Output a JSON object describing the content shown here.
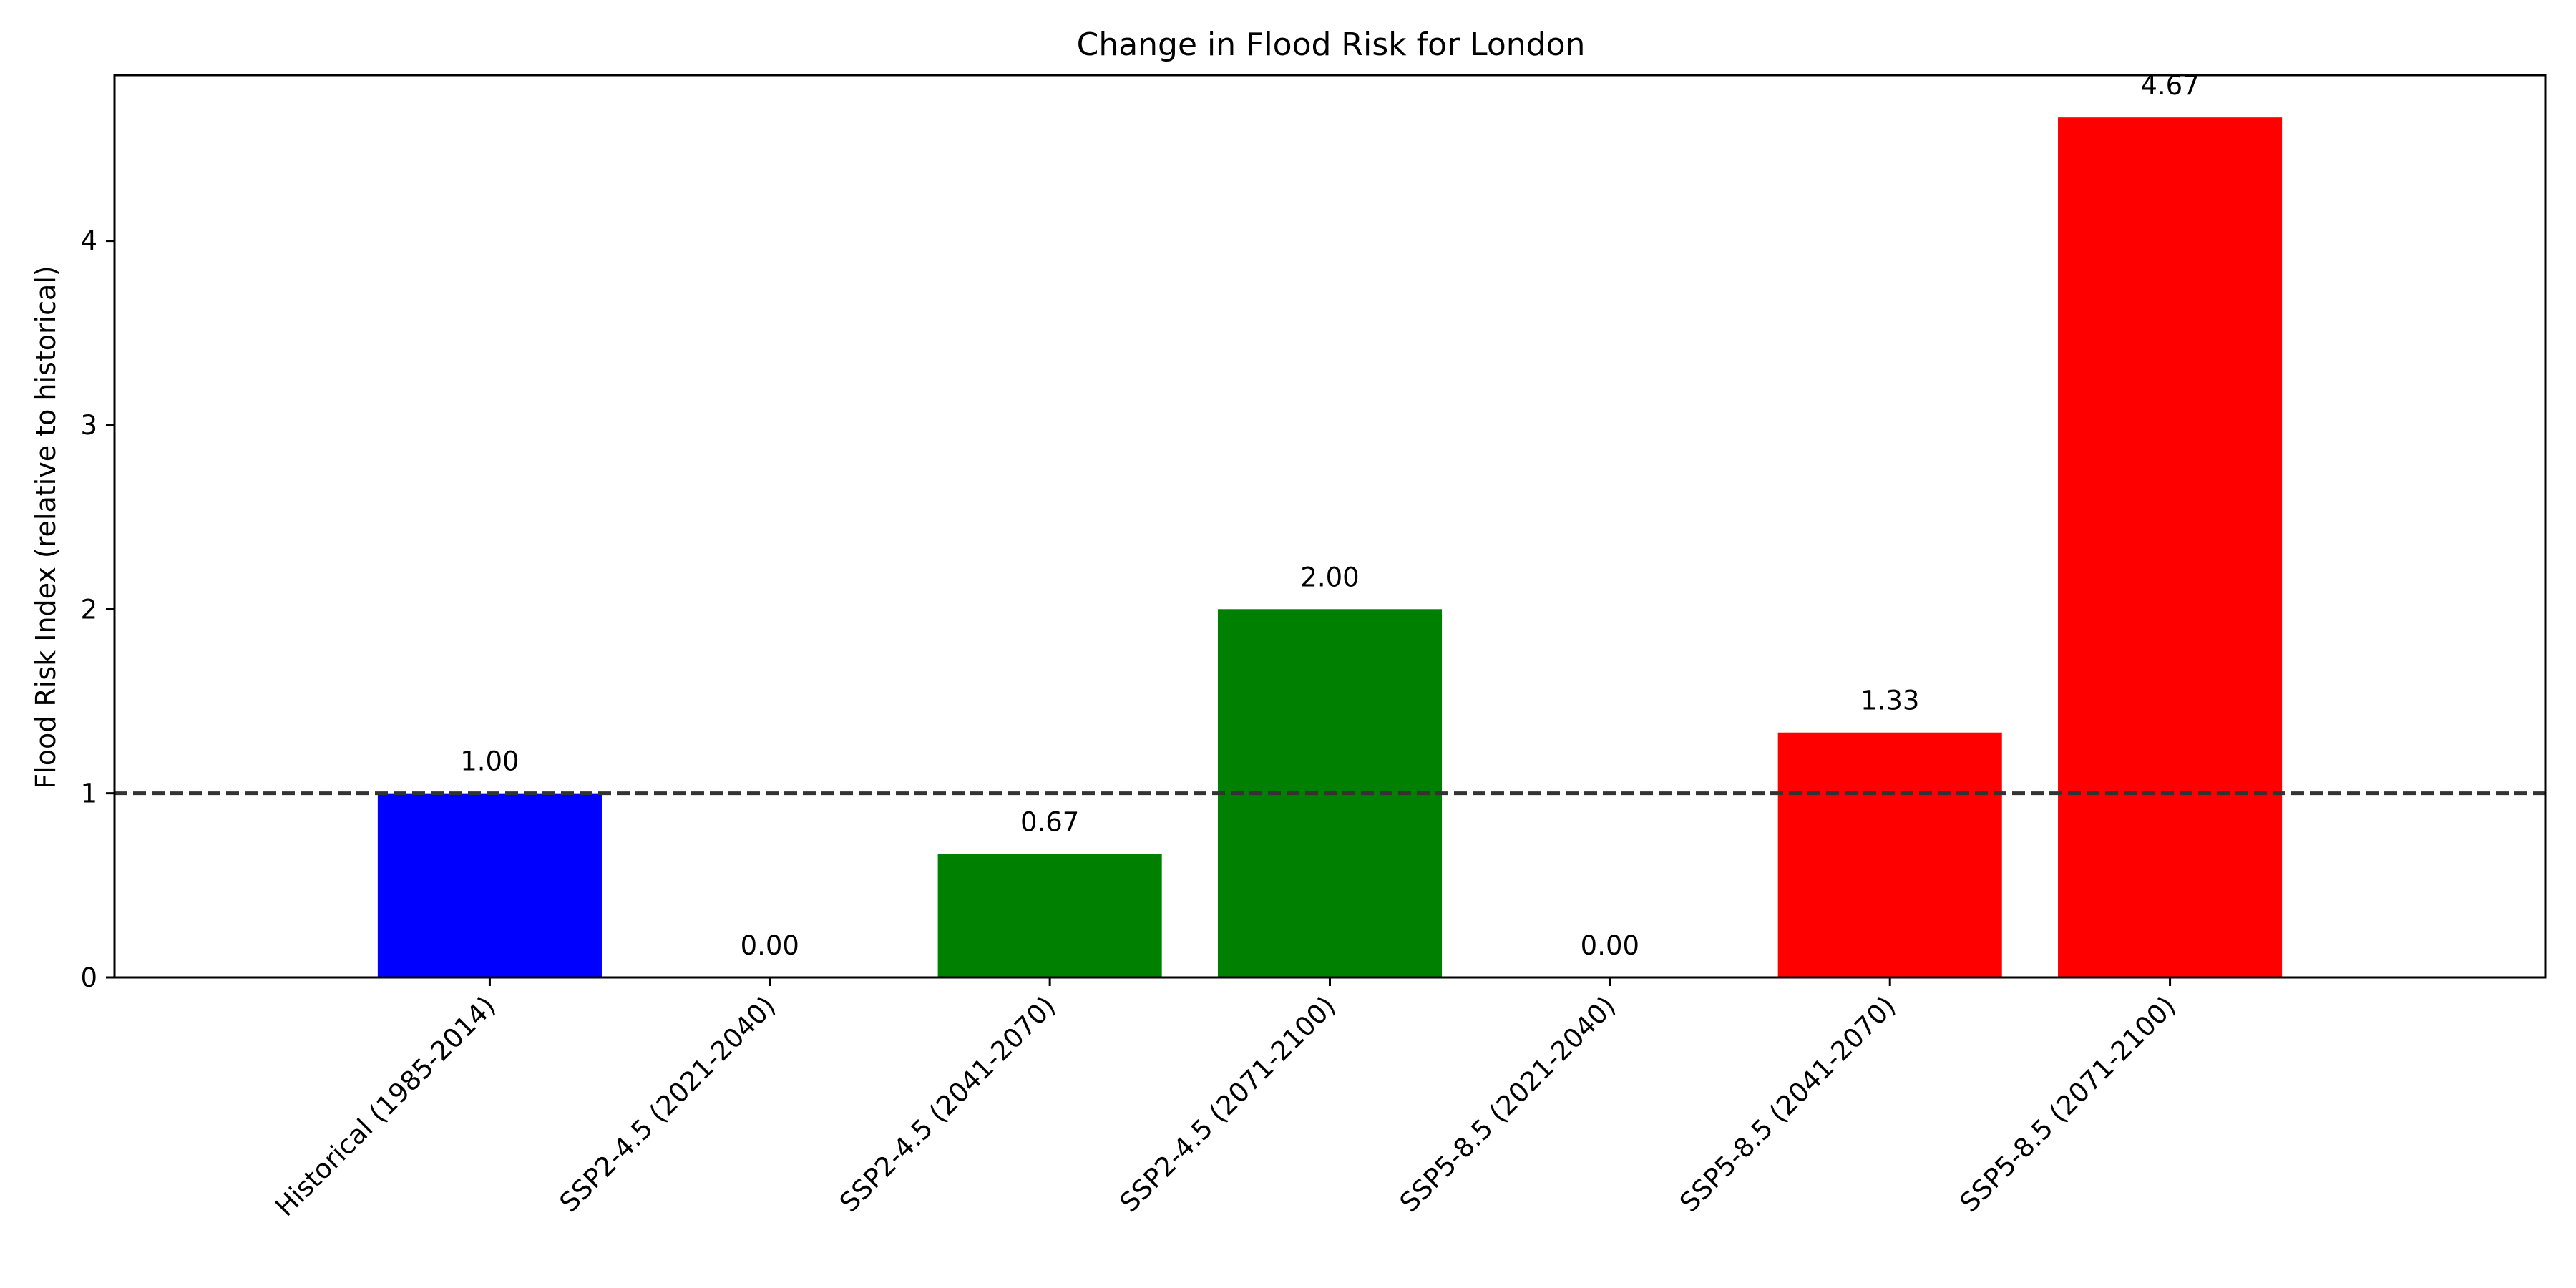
{
  "chart_data": {
    "type": "bar",
    "title": "Change in Flood Risk for London",
    "xlabel": "",
    "ylabel": "Flood Risk Index (relative to historical)",
    "categories": [
      "Historical (1985-2014)",
      "SSP2-4.5 (2021-2040)",
      "SSP2-4.5 (2041-2070)",
      "SSP2-4.5 (2071-2100)",
      "SSP5-8.5 (2021-2040)",
      "SSP5-8.5 (2041-2070)",
      "SSP5-8.5 (2071-2100)"
    ],
    "values": [
      1.0,
      0.0,
      0.67,
      2.0,
      0.0,
      1.33,
      4.67
    ],
    "value_labels": [
      "1.00",
      "0.00",
      "0.67",
      "2.00",
      "0.00",
      "1.33",
      "4.67"
    ],
    "colors": [
      "#0000ff",
      "#008000",
      "#008000",
      "#008000",
      "#ff0000",
      "#ff0000",
      "#ff0000"
    ],
    "ylim": [
      0,
      4.9
    ],
    "yticks": [
      0,
      1,
      2,
      3,
      4
    ],
    "reference_line": {
      "y": 1.0,
      "style": "dashed",
      "color": "#333333"
    },
    "grid": false,
    "legend": "none"
  }
}
